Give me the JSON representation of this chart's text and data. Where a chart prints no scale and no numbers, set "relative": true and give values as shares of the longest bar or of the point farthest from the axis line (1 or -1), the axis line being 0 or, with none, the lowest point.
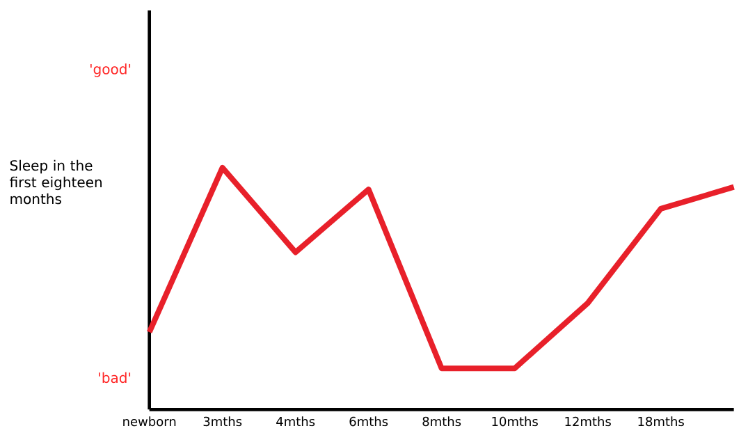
{
  "chart_data": {
    "type": "line",
    "relative": true,
    "ylabel": "Sleep in the first eighteen months",
    "categories": [
      "newborn",
      "3mths",
      "4mths",
      "6mths",
      "8mths",
      "10mths",
      "12mths",
      "18mths",
      null
    ],
    "series": [
      {
        "color": "#e8202a",
        "values": [
          0.32,
          1,
          0.65,
          0.91,
          0.17,
          0.17,
          0.44,
          0.83,
          0.92
        ]
      }
    ],
    "annotations": [
      "'good'",
      "'bad'"
    ],
    "grid": false
  }
}
